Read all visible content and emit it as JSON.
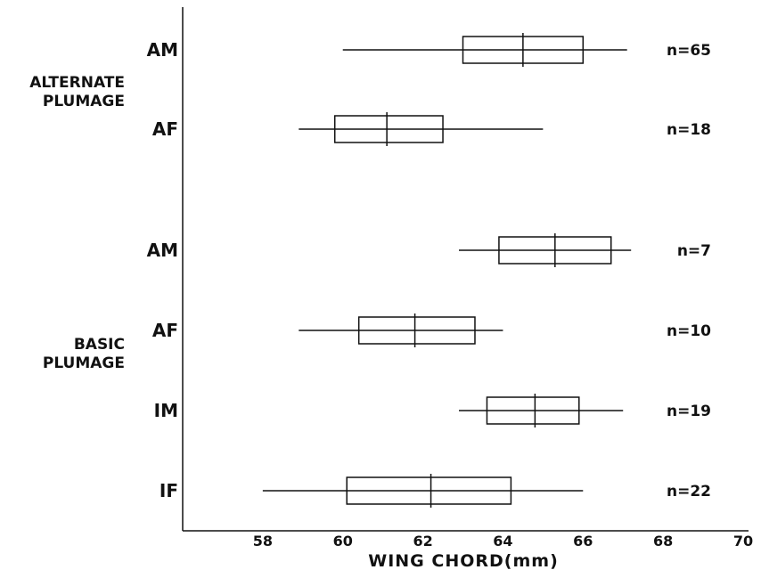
{
  "chart_data": {
    "type": "box",
    "xlabel": "WING CHORD(mm)",
    "xlim": [
      56,
      70
    ],
    "xticks": [
      58,
      60,
      62,
      64,
      66,
      68,
      70
    ],
    "grid": false,
    "groups": [
      {
        "label": "ALTERNATE PLUMAGE",
        "lines": [
          "ALTERNATE",
          "PLUMAGE"
        ],
        "anchor_row": 0
      },
      {
        "label": "BASIC PLUMAGE",
        "lines": [
          "BASIC",
          "PLUMAGE"
        ],
        "anchor_row": 3
      }
    ],
    "rows": [
      {
        "group": "ALTERNATE PLUMAGE",
        "label": "AM",
        "min": 60.0,
        "q1": 63.0,
        "median": 64.5,
        "q3": 66.0,
        "max": 67.1,
        "n_label": "n=65"
      },
      {
        "group": "ALTERNATE PLUMAGE",
        "label": "AF",
        "min": 58.9,
        "q1": 59.8,
        "median": 61.1,
        "q3": 62.5,
        "max": 65.0,
        "n_label": "n=18"
      },
      {
        "group": "BASIC PLUMAGE",
        "label": "AM",
        "min": 62.9,
        "q1": 63.9,
        "median": 65.3,
        "q3": 66.7,
        "max": 67.2,
        "n_label": "n=7"
      },
      {
        "group": "BASIC PLUMAGE",
        "label": "AF",
        "min": 58.9,
        "q1": 60.4,
        "median": 61.8,
        "q3": 63.3,
        "max": 64.0,
        "n_label": "n=10"
      },
      {
        "group": "BASIC PLUMAGE",
        "label": "IM",
        "min": 62.9,
        "q1": 63.6,
        "median": 64.8,
        "q3": 65.9,
        "max": 67.0,
        "n_label": "n=19"
      },
      {
        "group": "BASIC PLUMAGE",
        "label": "IF",
        "min": 58.0,
        "q1": 60.1,
        "median": 62.2,
        "q3": 64.2,
        "max": 66.0,
        "n_label": "n=22"
      }
    ]
  }
}
